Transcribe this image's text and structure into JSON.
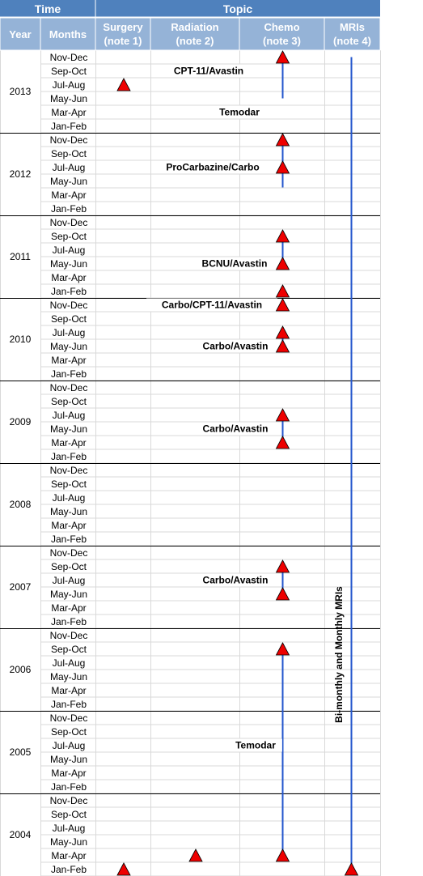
{
  "chart_data": {
    "type": "timeline",
    "header": {
      "time": "Time",
      "topic": "Topic",
      "columns": [
        {
          "label": "Year"
        },
        {
          "label": "Months"
        },
        {
          "label": "Surgery",
          "sublabel": "(note 1)"
        },
        {
          "label": "Radiation",
          "sublabel": "(note 2)"
        },
        {
          "label": "Chemo",
          "sublabel": "(note 3)"
        },
        {
          "label": "MRIs",
          "sublabel": "(note 4)"
        }
      ]
    },
    "years": [
      "2013",
      "2012",
      "2011",
      "2010",
      "2009",
      "2008",
      "2007",
      "2006",
      "2005",
      "2004"
    ],
    "months": [
      "Nov-Dec",
      "Sep-Oct",
      "Jul-Aug",
      "May-Jun",
      "Mar-Apr",
      "Jan-Feb"
    ],
    "events": [
      {
        "column": "Surgery",
        "year": "2013",
        "months": "Jul-Aug"
      },
      {
        "column": "Surgery",
        "year": "2004",
        "months": "Jan-Feb"
      },
      {
        "column": "Radiation",
        "year": "2004",
        "months": "Mar-Apr"
      },
      {
        "column": "Chemo",
        "year": "2013",
        "months": "Nov-Dec"
      },
      {
        "column": "Chemo",
        "year": "2012",
        "months": "Nov-Dec"
      },
      {
        "column": "Chemo",
        "year": "2012",
        "months": "Jul-Aug"
      },
      {
        "column": "Chemo",
        "year": "2011",
        "months": "Sep-Oct"
      },
      {
        "column": "Chemo",
        "year": "2011",
        "months": "May-Jun"
      },
      {
        "column": "Chemo",
        "year": "2011",
        "months": "Jan-Feb"
      },
      {
        "column": "Chemo",
        "year": "2010",
        "months": "Nov-Dec"
      },
      {
        "column": "Chemo",
        "year": "2010",
        "months": "Jul-Aug"
      },
      {
        "column": "Chemo",
        "year": "2010",
        "months": "May-Jun"
      },
      {
        "column": "Chemo",
        "year": "2009",
        "months": "Jul-Aug"
      },
      {
        "column": "Chemo",
        "year": "2009",
        "months": "Mar-Apr"
      },
      {
        "column": "Chemo",
        "year": "2007",
        "months": "Sep-Oct"
      },
      {
        "column": "Chemo",
        "year": "2007",
        "months": "May-Jun"
      },
      {
        "column": "Chemo",
        "year": "2006",
        "months": "Sep-Oct"
      },
      {
        "column": "Chemo",
        "year": "2004",
        "months": "Mar-Apr"
      },
      {
        "column": "MRIs",
        "year": "2004",
        "months": "Jan-Feb"
      }
    ],
    "spans": [
      {
        "column": "Chemo",
        "from": {
          "year": "2013",
          "months": "May-Jun"
        },
        "to": {
          "year": "2013",
          "months": "Nov-Dec"
        }
      },
      {
        "column": "Chemo",
        "from": {
          "year": "2012",
          "months": "May-Jun"
        },
        "to": {
          "year": "2012",
          "months": "Nov-Dec"
        }
      },
      {
        "column": "Chemo",
        "from": {
          "year": "2011",
          "months": "May-Jun"
        },
        "to": {
          "year": "2011",
          "months": "Sep-Oct"
        }
      },
      {
        "column": "Chemo",
        "from": {
          "year": "2010",
          "months": "May-Jun"
        },
        "to": {
          "year": "2010",
          "months": "Jul-Aug"
        }
      },
      {
        "column": "Chemo",
        "from": {
          "year": "2009",
          "months": "Mar-Apr"
        },
        "to": {
          "year": "2009",
          "months": "Jul-Aug"
        }
      },
      {
        "column": "Chemo",
        "from": {
          "year": "2007",
          "months": "May-Jun"
        },
        "to": {
          "year": "2007",
          "months": "Sep-Oct"
        }
      },
      {
        "column": "Chemo",
        "from": {
          "year": "2004",
          "months": "Mar-Apr"
        },
        "to": {
          "year": "2006",
          "months": "Sep-Oct"
        }
      },
      {
        "column": "MRIs",
        "from": {
          "year": "2004",
          "months": "Jan-Feb"
        },
        "to": {
          "year": "2013",
          "months": "Nov-Dec"
        }
      }
    ],
    "annotations": [
      {
        "text": "CPT-11/Avastin",
        "year": "2013",
        "months": "Sep-Oct"
      },
      {
        "text": "Temodar",
        "year": "2013",
        "months": "Mar-Apr"
      },
      {
        "text": "ProCarbazine/Carbo",
        "year": "2012",
        "months": "Jul-Aug"
      },
      {
        "text": "BCNU/Avastin",
        "year": "2011",
        "months": "May-Jun"
      },
      {
        "text": "Carbo/CPT-11/Avastin",
        "year": "2010",
        "months": "Nov-Dec"
      },
      {
        "text": "Carbo/Avastin",
        "year": "2010",
        "months": "May-Jun"
      },
      {
        "text": "Carbo/Avastin",
        "year": "2009",
        "months": "May-Jun"
      },
      {
        "text": "Carbo/Avastin",
        "year": "2007",
        "months": "Jul-Aug"
      },
      {
        "text": "Temodar",
        "year": "2005",
        "months": "Jul-Aug"
      },
      {
        "text": "Bi-monthly and Monthly MRIs",
        "year": "2006",
        "months": "Jul-Aug",
        "orientation": "vertical"
      }
    ],
    "colors": {
      "header_bg": "#4f81bd",
      "header_sub_bg": "#95b3d7",
      "grid": "#d9d9d9",
      "year_divider": "#000000",
      "marker": "#ee0000",
      "span_line": "#2255cc"
    }
  }
}
